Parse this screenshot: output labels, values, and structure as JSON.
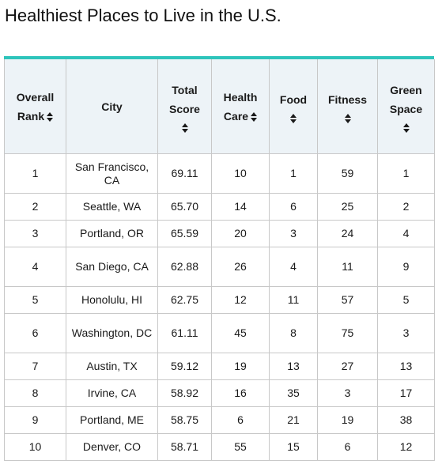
{
  "title": "Healthiest Places to Live in the U.S.",
  "table": {
    "headers": {
      "rank": [
        "Overall",
        "Rank"
      ],
      "city": [
        "City"
      ],
      "score": [
        "Total",
        "Score"
      ],
      "health": [
        "Health",
        "Care"
      ],
      "food": [
        "Food"
      ],
      "fitness": [
        "Fitness"
      ],
      "green": [
        "Green",
        "Space"
      ]
    },
    "sort_icon": "sort-up-down-icon",
    "accent_color": "#2ec4bb",
    "header_bg": "#edf3f7",
    "rows": [
      {
        "rank": "1",
        "city": "San Francisco, CA",
        "score": "69.11",
        "health": "10",
        "food": "1",
        "fitness": "59",
        "green": "1"
      },
      {
        "rank": "2",
        "city": "Seattle, WA",
        "score": "65.70",
        "health": "14",
        "food": "6",
        "fitness": "25",
        "green": "2"
      },
      {
        "rank": "3",
        "city": "Portland, OR",
        "score": "65.59",
        "health": "20",
        "food": "3",
        "fitness": "24",
        "green": "4"
      },
      {
        "rank": "4",
        "city": "San Diego, CA",
        "score": "62.88",
        "health": "26",
        "food": "4",
        "fitness": "11",
        "green": "9"
      },
      {
        "rank": "5",
        "city": "Honolulu, HI",
        "score": "62.75",
        "health": "12",
        "food": "11",
        "fitness": "57",
        "green": "5"
      },
      {
        "rank": "6",
        "city": "Washington, DC",
        "score": "61.11",
        "health": "45",
        "food": "8",
        "fitness": "75",
        "green": "3"
      },
      {
        "rank": "7",
        "city": "Austin, TX",
        "score": "59.12",
        "health": "19",
        "food": "13",
        "fitness": "27",
        "green": "13"
      },
      {
        "rank": "8",
        "city": "Irvine, CA",
        "score": "58.92",
        "health": "16",
        "food": "35",
        "fitness": "3",
        "green": "17"
      },
      {
        "rank": "9",
        "city": "Portland, ME",
        "score": "58.75",
        "health": "6",
        "food": "21",
        "fitness": "19",
        "green": "38"
      },
      {
        "rank": "10",
        "city": "Denver, CO",
        "score": "58.71",
        "health": "55",
        "food": "15",
        "fitness": "6",
        "green": "12"
      }
    ]
  }
}
